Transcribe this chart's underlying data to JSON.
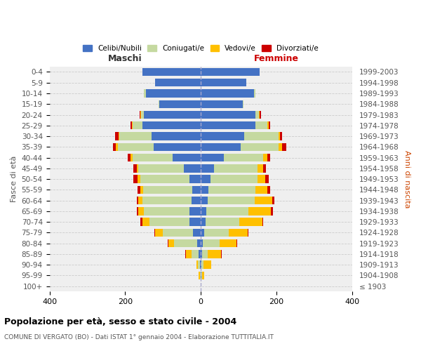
{
  "age_groups": [
    "100+",
    "95-99",
    "90-94",
    "85-89",
    "80-84",
    "75-79",
    "70-74",
    "65-69",
    "60-64",
    "55-59",
    "50-54",
    "45-49",
    "40-44",
    "35-39",
    "30-34",
    "25-29",
    "20-24",
    "15-19",
    "10-14",
    "5-9",
    "0-4"
  ],
  "birth_years": [
    "≤ 1903",
    "1904-1908",
    "1909-1913",
    "1914-1918",
    "1919-1923",
    "1924-1928",
    "1929-1933",
    "1934-1938",
    "1939-1943",
    "1944-1948",
    "1949-1953",
    "1954-1958",
    "1959-1963",
    "1964-1968",
    "1969-1973",
    "1974-1978",
    "1979-1983",
    "1984-1988",
    "1989-1993",
    "1994-1998",
    "1999-2003"
  ],
  "maschi": {
    "celibi": [
      0,
      1,
      2,
      5,
      10,
      20,
      30,
      30,
      25,
      22,
      30,
      45,
      75,
      125,
      130,
      155,
      150,
      110,
      145,
      120,
      155
    ],
    "coniugati": [
      0,
      2,
      5,
      20,
      60,
      80,
      105,
      120,
      130,
      130,
      130,
      120,
      105,
      95,
      85,
      25,
      8,
      2,
      5,
      0,
      0
    ],
    "vedovi": [
      0,
      2,
      5,
      15,
      15,
      20,
      20,
      15,
      10,
      8,
      8,
      5,
      5,
      5,
      3,
      3,
      2,
      0,
      0,
      0,
      0
    ],
    "divorziati": [
      0,
      0,
      0,
      2,
      3,
      3,
      5,
      5,
      5,
      7,
      10,
      8,
      8,
      8,
      8,
      2,
      2,
      0,
      0,
      0,
      0
    ]
  },
  "femmine": {
    "nubili": [
      0,
      1,
      2,
      3,
      5,
      8,
      12,
      15,
      18,
      20,
      25,
      35,
      60,
      105,
      115,
      145,
      145,
      110,
      140,
      120,
      155
    ],
    "coniugate": [
      0,
      2,
      5,
      15,
      45,
      65,
      90,
      110,
      125,
      125,
      125,
      115,
      105,
      100,
      90,
      30,
      8,
      2,
      5,
      0,
      0
    ],
    "vedove": [
      0,
      5,
      20,
      35,
      45,
      50,
      60,
      60,
      45,
      30,
      20,
      15,
      10,
      10,
      5,
      5,
      3,
      0,
      0,
      0,
      0
    ],
    "divorziate": [
      0,
      0,
      1,
      2,
      2,
      3,
      3,
      5,
      7,
      8,
      10,
      8,
      8,
      10,
      5,
      3,
      3,
      0,
      0,
      0,
      0
    ]
  },
  "colors": {
    "celibi_nubili": "#4472c4",
    "coniugati": "#c5d9a0",
    "vedovi": "#ffc000",
    "divorziati": "#cc0000"
  },
  "title": "Popolazione per età, sesso e stato civile - 2004",
  "subtitle": "COMUNE DI VERGATO (BO) - Dati ISTAT 1° gennaio 2004 - Elaborazione TUTTITALIA.IT",
  "ylabel_left": "Fasce di età",
  "ylabel_right": "Anni di nascita",
  "xlabel_left": "Maschi",
  "xlabel_right": "Femmine",
  "xlim": 400,
  "background_color": "#ffffff",
  "grid_color": "#cccccc"
}
